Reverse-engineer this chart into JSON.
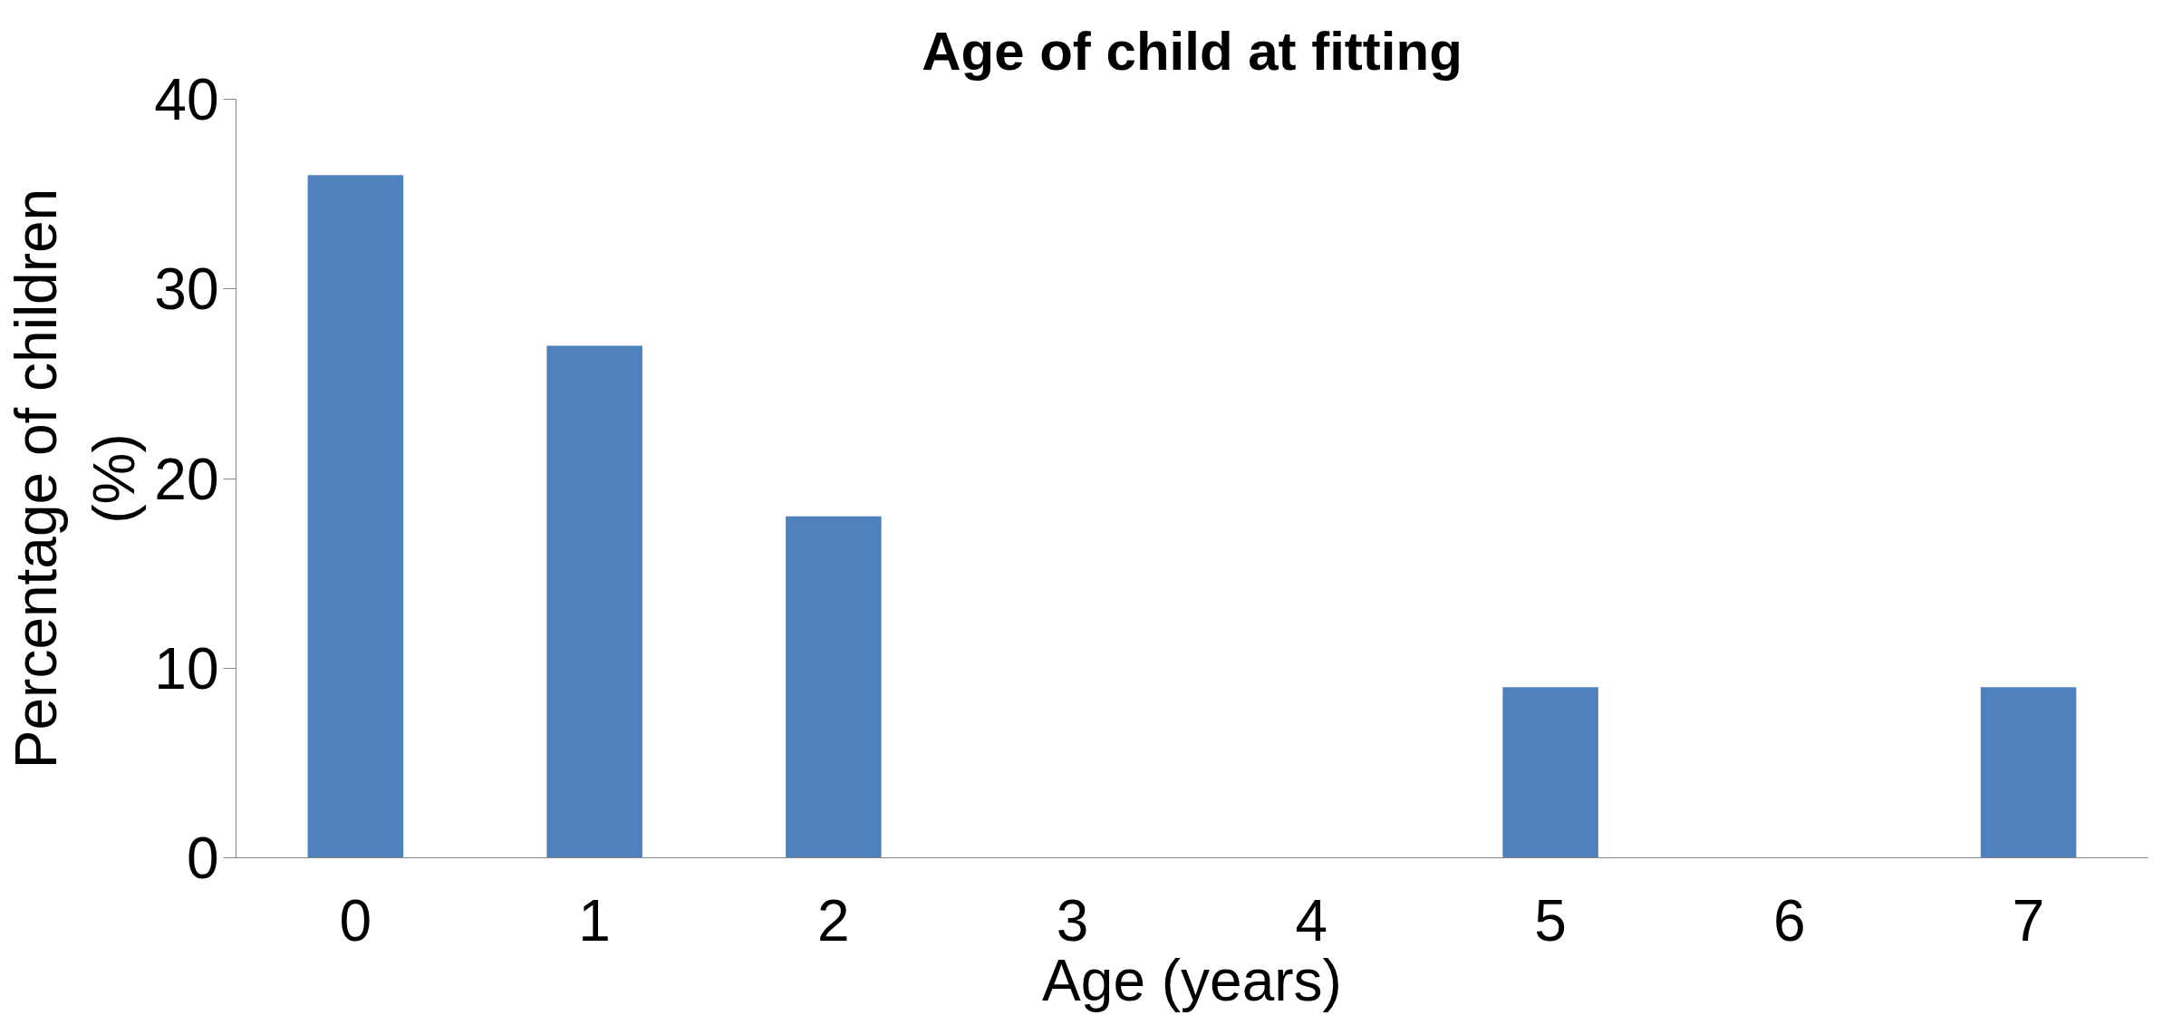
{
  "chart_data": {
    "type": "bar",
    "title": "Age of child at fitting",
    "xlabel": "Age (years)",
    "ylabel": "Percentage of children (%)",
    "categories": [
      "0",
      "1",
      "2",
      "3",
      "4",
      "5",
      "6",
      "7"
    ],
    "values": [
      36,
      27,
      18,
      0,
      0,
      9,
      0,
      9
    ],
    "color": "#4f81bd",
    "ylim": [
      0,
      40
    ],
    "yticks": [
      0,
      10,
      20,
      30,
      40
    ],
    "grid": false
  }
}
